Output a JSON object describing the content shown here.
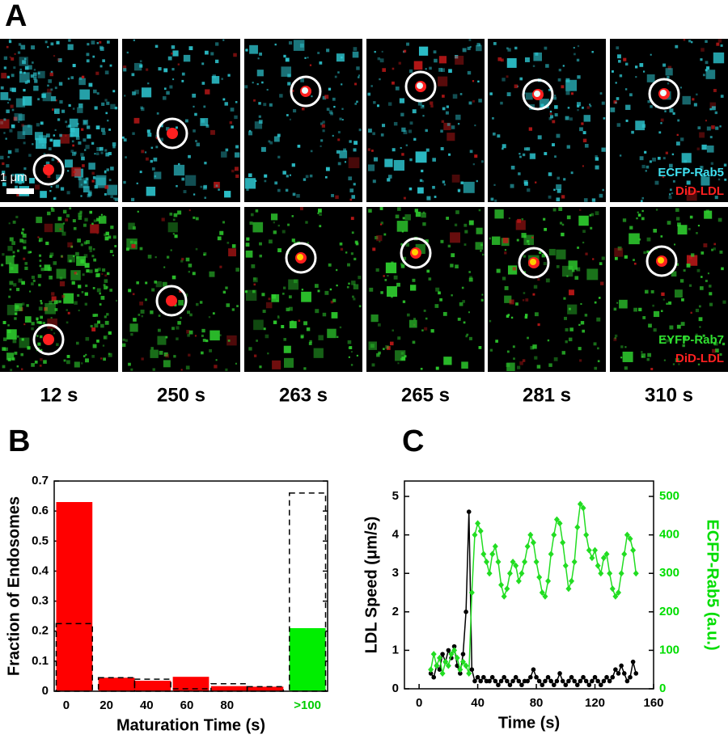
{
  "panel_a": {
    "label": "A",
    "time_labels": [
      "12 s",
      "250 s",
      "263 s",
      "265 s",
      "281 s",
      "310 s"
    ],
    "scale_bar": "1 μm",
    "top_legend": [
      "ECFP-Rab5",
      "DiD-LDL"
    ],
    "bottom_legend": [
      "EYFP-Rab7",
      "DiD-LDL"
    ]
  },
  "chart_data": [
    {
      "type": "bar",
      "panel_label": "B",
      "xlabel": "Maturation Time (s)",
      "ylabel": "Fraction of Endosomes",
      "x": [
        4,
        25,
        43,
        62,
        81,
        99,
        120
      ],
      "series": [
        {
          "style": "filled",
          "colors": [
            "#ff0000",
            "#ff0000",
            "#ff0000",
            "#ff0000",
            "#ff0000",
            "#ff0000",
            "#00ee00"
          ],
          "values": [
            0.63,
            0.045,
            0.035,
            0.048,
            0.017,
            0.015,
            0.21
          ]
        },
        {
          "style": "dashed",
          "color": "#000000",
          "values": [
            0.225,
            0.045,
            0.04,
            0.008,
            0.025,
            0.015,
            0.66
          ]
        }
      ],
      "xlim": [
        -6,
        130
      ],
      "xticks": [
        0,
        20,
        40,
        60,
        80,
        {
          "value": 120,
          "label": ">100",
          "color": "#00cc00"
        }
      ],
      "ylim": [
        0,
        0.7
      ],
      "yticks": [
        0,
        0.1,
        0.2,
        0.3,
        0.4,
        0.5,
        0.6,
        0.7
      ]
    },
    {
      "type": "line",
      "panel_label": "C",
      "xlabel": "Time (s)",
      "ylabel": "LDL Speed (μm/s)",
      "y2label": "ECFP-Rab5 (a.u.)",
      "y2_color": "#00dd00",
      "x": [
        8,
        10,
        12,
        14,
        16,
        18,
        20,
        22,
        24,
        26,
        28,
        30,
        32,
        34,
        36,
        38,
        40,
        42,
        44,
        46,
        48,
        50,
        52,
        54,
        56,
        58,
        60,
        62,
        64,
        66,
        68,
        70,
        72,
        74,
        76,
        78,
        80,
        82,
        84,
        86,
        88,
        90,
        92,
        94,
        96,
        98,
        100,
        102,
        104,
        106,
        108,
        110,
        112,
        114,
        116,
        118,
        120,
        122,
        124,
        126,
        128,
        130,
        132,
        134,
        136,
        138,
        140,
        142,
        144,
        146,
        148
      ],
      "series": [
        {
          "color": "#000000",
          "marker": "circle",
          "values": [
            0.4,
            0.3,
            0.6,
            0.5,
            0.9,
            0.7,
            1.0,
            0.8,
            1.1,
            0.6,
            0.4,
            0.9,
            2.0,
            4.6,
            0.5,
            0.2,
            0.3,
            0.2,
            0.3,
            0.2,
            0.2,
            0.3,
            0.2,
            0.1,
            0.2,
            0.3,
            0.2,
            0.1,
            0.2,
            0.3,
            0.2,
            0.1,
            0.2,
            0.2,
            0.3,
            0.5,
            0.3,
            0.2,
            0.1,
            0.2,
            0.3,
            0.2,
            0.1,
            0.2,
            0.4,
            0.2,
            0.1,
            0.2,
            0.3,
            0.2,
            0.1,
            0.2,
            0.3,
            0.2,
            0.1,
            0.2,
            0.3,
            0.2,
            0.1,
            0.2,
            0.3,
            0.2,
            0.3,
            0.5,
            0.4,
            0.6,
            0.4,
            0.2,
            0.3,
            0.7,
            0.4
          ]
        },
        {
          "color": "#22dd22",
          "marker": "diamond",
          "axis": "y2",
          "values": [
            50,
            90,
            60,
            80,
            40,
            70,
            60,
            90,
            100,
            80,
            50,
            70,
            60,
            40,
            250,
            400,
            430,
            410,
            350,
            330,
            300,
            350,
            370,
            330,
            270,
            240,
            260,
            300,
            330,
            320,
            280,
            300,
            330,
            370,
            400,
            380,
            330,
            290,
            250,
            240,
            280,
            350,
            400,
            440,
            430,
            380,
            320,
            260,
            280,
            330,
            420,
            480,
            470,
            400,
            360,
            340,
            360,
            320,
            300,
            340,
            350,
            300,
            260,
            240,
            250,
            300,
            350,
            400,
            390,
            360,
            300
          ]
        }
      ],
      "xlim": [
        -10,
        160
      ],
      "xticks": [
        0,
        40,
        80,
        120,
        160
      ],
      "ylim": [
        0,
        5.4
      ],
      "yticks": [
        0,
        1,
        2,
        3,
        4,
        5
      ],
      "y2lim": [
        0,
        540
      ],
      "y2ticks": [
        0,
        100,
        200,
        300,
        400,
        500
      ]
    }
  ]
}
